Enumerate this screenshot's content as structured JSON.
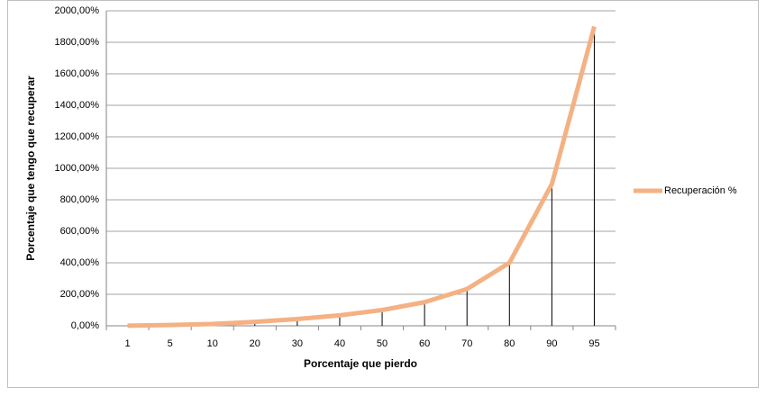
{
  "chart_data": {
    "type": "line",
    "x_label": "Porcentaje que pierdo",
    "y_label": "Porcentaje que tengo que recuperar",
    "categories": [
      "1",
      "5",
      "10",
      "20",
      "30",
      "40",
      "50",
      "60",
      "70",
      "80",
      "90",
      "95"
    ],
    "series": [
      {
        "name": "Recuperación %",
        "color": "#f4b183",
        "values": [
          1.01,
          5.26,
          11.11,
          25,
          42.86,
          66.67,
          100,
          150,
          233.33,
          400,
          900,
          1900
        ]
      }
    ],
    "ylim": [
      0,
      2000
    ],
    "yticks": [
      {
        "value": 0,
        "label": "0,00%"
      },
      {
        "value": 200,
        "label": "200,00%"
      },
      {
        "value": 400,
        "label": "400,00%"
      },
      {
        "value": 600,
        "label": "600,00%"
      },
      {
        "value": 800,
        "label": "800,00%"
      },
      {
        "value": 1000,
        "label": "1000,00%"
      },
      {
        "value": 1200,
        "label": "1200,00%"
      },
      {
        "value": 1400,
        "label": "1400,00%"
      },
      {
        "value": 1600,
        "label": "1600,00%"
      },
      {
        "value": 1800,
        "label": "1800,00%"
      },
      {
        "value": 2000,
        "label": "2000,00%"
      }
    ],
    "grid": true,
    "drop_lines": true,
    "legend": "right"
  }
}
